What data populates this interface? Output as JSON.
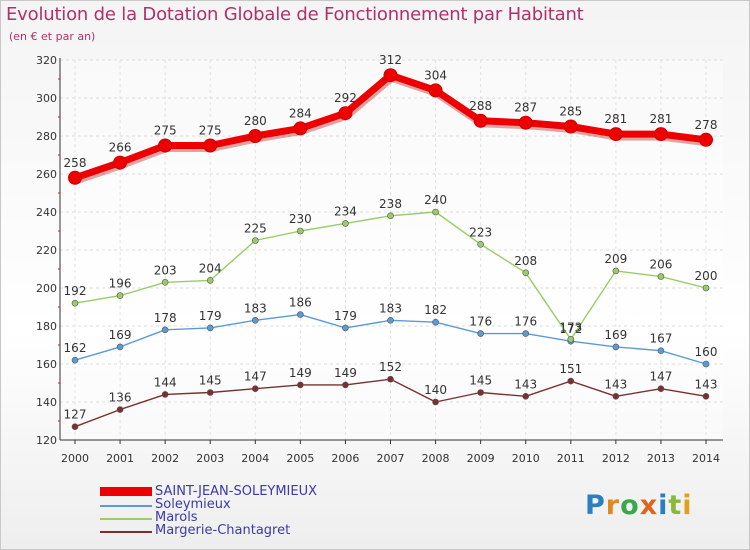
{
  "title": "Evolution de la Dotation Globale de Fonctionnement par Habitant",
  "subtitle": "(en € et par an)",
  "logo": {
    "text": "Proxiti",
    "letters": [
      {
        "ch": "P",
        "color": "#2a7fc1"
      },
      {
        "ch": "r",
        "color": "#e08a1e"
      },
      {
        "ch": "o",
        "color": "#3aa84a"
      },
      {
        "ch": "x",
        "color": "#e0641e"
      },
      {
        "ch": "i",
        "color": "#2a7fc1"
      },
      {
        "ch": "t",
        "color": "#8cb83a"
      },
      {
        "ch": "i",
        "color": "#e0a01e"
      }
    ]
  },
  "chart_data": {
    "type": "line",
    "title": "Evolution de la Dotation Globale de Fonctionnement par Habitant",
    "subtitle": "(en € et par an)",
    "xlabel": "",
    "ylabel": "",
    "x": [
      2000,
      2001,
      2002,
      2003,
      2004,
      2005,
      2006,
      2007,
      2008,
      2009,
      2010,
      2011,
      2012,
      2013,
      2014
    ],
    "x_tick_labels": [
      "2000",
      "2001",
      "2002",
      "2003",
      "2004",
      "2005",
      "2006",
      "2007",
      "2008",
      "2009",
      "2010",
      "2011",
      "2012",
      "2013",
      "2014"
    ],
    "ylim": [
      120,
      320
    ],
    "y_ticks": [
      120,
      140,
      160,
      180,
      200,
      220,
      240,
      260,
      280,
      300,
      320
    ],
    "grid": true,
    "legend_position": "bottom-left",
    "series": [
      {
        "name": "SAINT-JEAN-SOLEYMIEUX",
        "color": "#ee0000",
        "emphasis": true,
        "values": [
          258,
          266,
          275,
          275,
          280,
          284,
          292,
          312,
          304,
          288,
          287,
          285,
          281,
          281,
          278
        ]
      },
      {
        "name": "Soleymieux",
        "color": "#5b9bd5",
        "emphasis": false,
        "values": [
          162,
          169,
          178,
          179,
          183,
          186,
          179,
          183,
          182,
          176,
          176,
          172,
          169,
          167,
          160
        ]
      },
      {
        "name": "Marols",
        "color": "#99cc66",
        "emphasis": false,
        "values": [
          192,
          196,
          203,
          204,
          225,
          230,
          234,
          238,
          240,
          223,
          208,
          173,
          209,
          206,
          200
        ]
      },
      {
        "name": "Margerie-Chantagret",
        "color": "#7a3030",
        "emphasis": false,
        "values": [
          127,
          136,
          144,
          145,
          147,
          149,
          149,
          152,
          140,
          145,
          143,
          151,
          143,
          147,
          143
        ]
      }
    ]
  }
}
